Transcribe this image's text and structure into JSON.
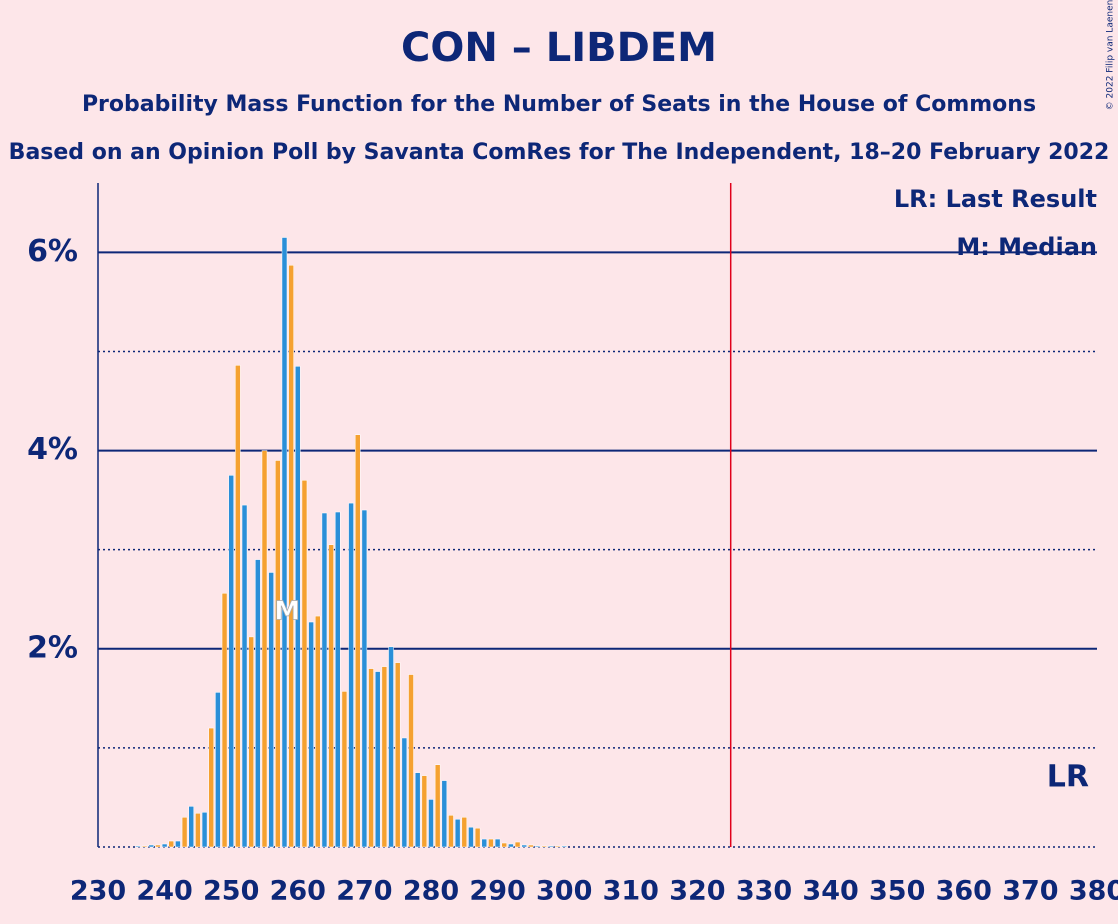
{
  "chart_data": {
    "type": "bar",
    "title": "CON – LIBDEM",
    "subtitle": "Probability Mass Function for the Number of Seats in the House of Commons",
    "subtitle_2": "Based on an Opinion Poll by Savanta ComRes for The Independent, 18–20 February 2022",
    "copyright": "© 2022 Filip van Laenen",
    "bar_colors": [
      "#2a8fd8",
      "#f5a130"
    ],
    "x": [
      236,
      237,
      238,
      239,
      240,
      241,
      242,
      243,
      244,
      245,
      246,
      247,
      248,
      249,
      250,
      251,
      252,
      253,
      254,
      255,
      256,
      257,
      258,
      259,
      260,
      261,
      262,
      263,
      264,
      265,
      266,
      267,
      268,
      269,
      270,
      271,
      272,
      273,
      274,
      275,
      276,
      277,
      278,
      279,
      280,
      281,
      282,
      283,
      284,
      285,
      286,
      287,
      288,
      289,
      290,
      291,
      292,
      293,
      294,
      295,
      296,
      297,
      298,
      299,
      300
    ],
    "values": [
      0.01,
      0.01,
      0.02,
      0.02,
      0.03,
      0.06,
      0.06,
      0.3,
      0.41,
      0.34,
      0.35,
      1.2,
      1.56,
      2.56,
      3.75,
      4.86,
      3.45,
      2.12,
      2.9,
      4.0,
      2.77,
      3.9,
      6.15,
      5.87,
      4.85,
      3.7,
      2.27,
      2.33,
      3.37,
      3.05,
      3.38,
      1.57,
      3.47,
      4.16,
      3.4,
      1.8,
      1.77,
      1.82,
      2.02,
      1.86,
      1.1,
      1.74,
      0.75,
      0.72,
      0.48,
      0.83,
      0.67,
      0.32,
      0.28,
      0.3,
      0.2,
      0.19,
      0.08,
      0.08,
      0.08,
      0.04,
      0.03,
      0.05,
      0.02,
      0.02,
      0.01,
      0.01,
      0.01,
      0.01,
      0.01
    ],
    "xlim": [
      230,
      380
    ],
    "xticks": [
      230,
      240,
      250,
      260,
      270,
      280,
      290,
      300,
      310,
      320,
      330,
      340,
      350,
      360,
      370,
      380
    ],
    "ylim": [
      0,
      6.7
    ],
    "yticks": [
      {
        "value": 2,
        "label": "2%"
      },
      {
        "value": 4,
        "label": "4%"
      },
      {
        "value": 6,
        "label": "6%"
      }
    ],
    "minor_yticks": [
      0,
      1,
      3,
      5
    ],
    "last_result": {
      "x": 325,
      "label": "LR",
      "legend": "LR: Last Result",
      "color": "#e0001a"
    },
    "median": {
      "x": 259,
      "label": "M",
      "legend": "M: Median"
    }
  }
}
